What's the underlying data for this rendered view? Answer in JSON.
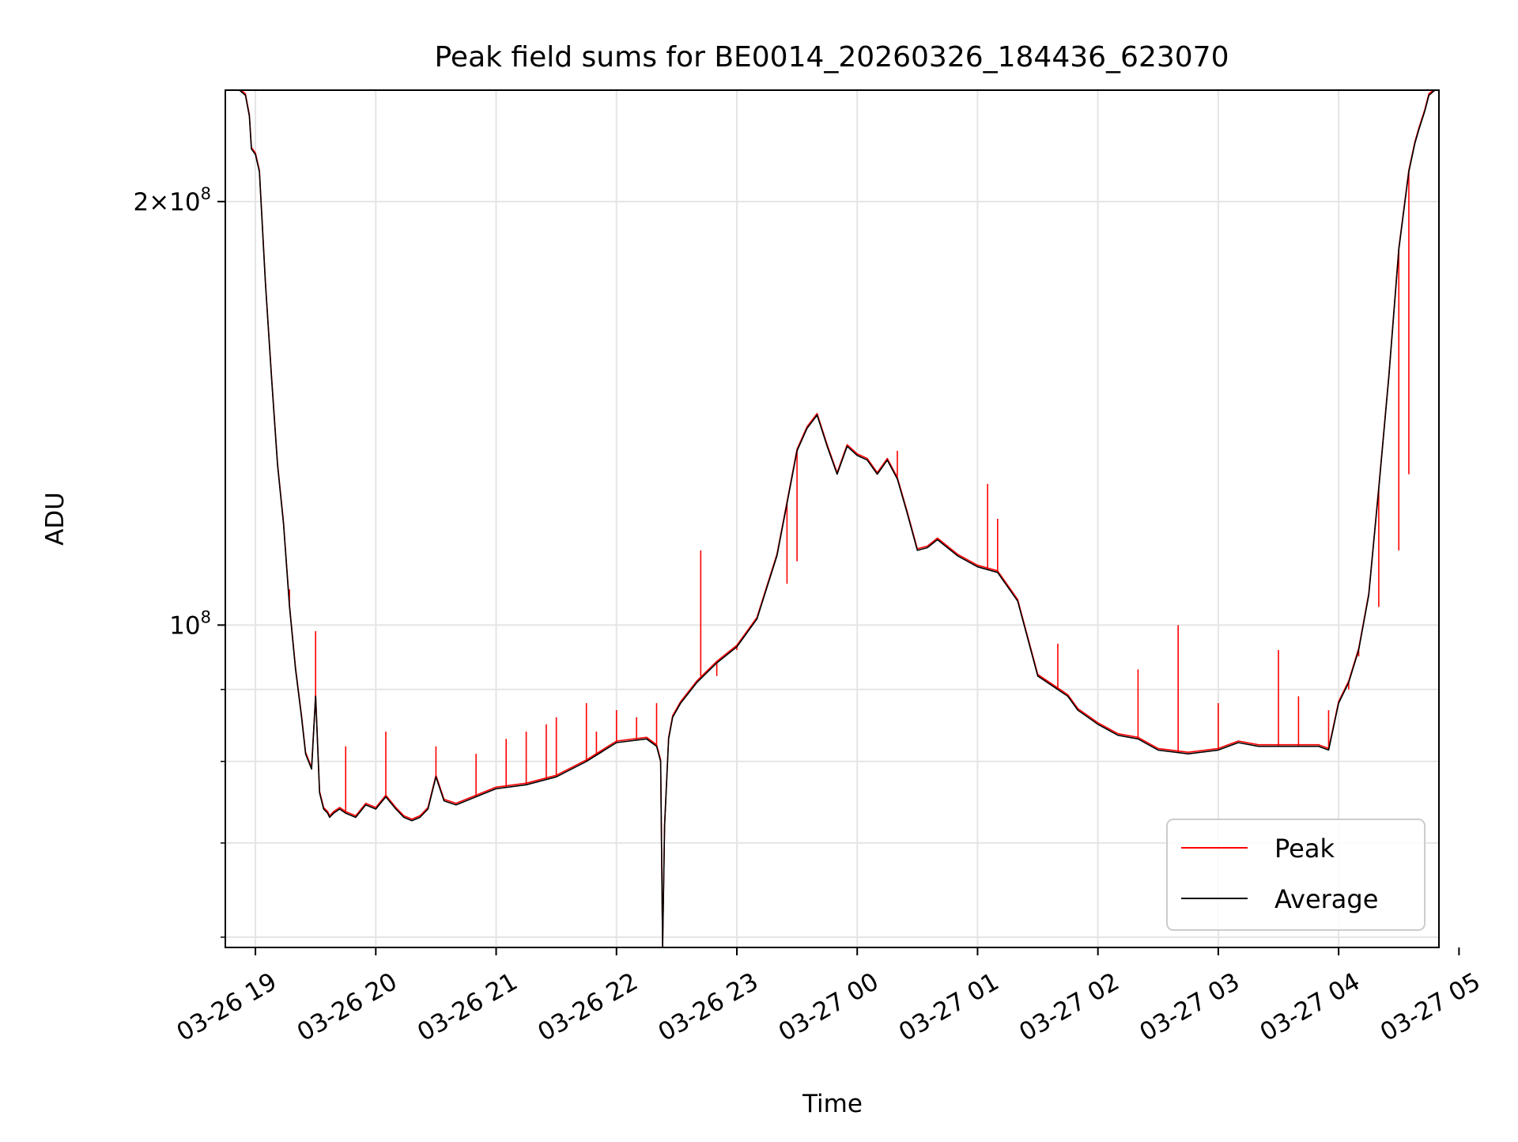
{
  "chart_data": {
    "type": "line",
    "title": "Peak field sums for BE0014_20260326_184436_623070",
    "xlabel": "Time",
    "ylabel": "ADU",
    "xlim": [
      "03-26 18:45",
      "03-27 04:50"
    ],
    "ylim": [
      59000000,
      240000000
    ],
    "yscale": "log",
    "grid": true,
    "legend_position": "lower-right",
    "x_ticks": [
      "03-26 19",
      "03-26 20",
      "03-26 21",
      "03-26 22",
      "03-26 23",
      "03-27 00",
      "03-27 01",
      "03-27 02",
      "03-27 03",
      "03-27 04",
      "03-27 05"
    ],
    "y_ticks": [
      {
        "value": 100000000,
        "mantissa": "",
        "base": "10",
        "exponent": "8"
      },
      {
        "value": 200000000,
        "mantissa": "2×",
        "base": "10",
        "exponent": "8"
      }
    ],
    "y_minor_ticks": [
      60000000,
      70000000,
      80000000,
      90000000
    ],
    "colors": {
      "peak": "#ff0000",
      "average": "#000000"
    },
    "series": [
      {
        "name": "Average",
        "x": [
          "03-26 18:45",
          "03-26 18:48",
          "03-26 18:52",
          "03-26 18:55",
          "03-26 18:57",
          "03-26 18:58",
          "03-26 19:00",
          "03-26 19:02",
          "03-26 19:05",
          "03-26 19:08",
          "03-26 19:11",
          "03-26 19:14",
          "03-26 19:17",
          "03-26 19:20",
          "03-26 19:23",
          "03-26 19:25",
          "03-26 19:28",
          "03-26 19:30",
          "03-26 19:32",
          "03-26 19:34",
          "03-26 19:36",
          "03-26 19:37",
          "03-26 19:39",
          "03-26 19:42",
          "03-26 19:45",
          "03-26 19:50",
          "03-26 19:55",
          "03-26 20:00",
          "03-26 20:05",
          "03-26 20:10",
          "03-26 20:14",
          "03-26 20:18",
          "03-26 20:22",
          "03-26 20:26",
          "03-26 20:30",
          "03-26 20:34",
          "03-26 20:40",
          "03-26 20:50",
          "03-26 21:00",
          "03-26 21:15",
          "03-26 21:30",
          "03-26 21:45",
          "03-26 22:00",
          "03-26 22:15",
          "03-26 22:20",
          "03-26 22:22",
          "03-26 22:23",
          "03-26 22:24",
          "03-26 22:26",
          "03-26 22:28",
          "03-26 22:32",
          "03-26 22:40",
          "03-26 22:50",
          "03-26 23:00",
          "03-26 23:10",
          "03-26 23:20",
          "03-26 23:25",
          "03-26 23:30",
          "03-26 23:35",
          "03-26 23:40",
          "03-26 23:45",
          "03-26 23:50",
          "03-26 23:55",
          "03-27 00:00",
          "03-27 00:05",
          "03-27 00:10",
          "03-27 00:15",
          "03-27 00:20",
          "03-27 00:25",
          "03-27 00:30",
          "03-27 00:35",
          "03-27 00:40",
          "03-27 00:50",
          "03-27 01:00",
          "03-27 01:10",
          "03-27 01:20",
          "03-27 01:30",
          "03-27 01:40",
          "03-27 01:45",
          "03-27 01:50",
          "03-27 01:55",
          "03-27 02:00",
          "03-27 02:10",
          "03-27 02:20",
          "03-27 02:30",
          "03-27 02:45",
          "03-27 03:00",
          "03-27 03:10",
          "03-27 03:20",
          "03-27 03:40",
          "03-27 03:50",
          "03-27 03:55",
          "03-27 04:00",
          "03-27 04:05",
          "03-27 04:10",
          "03-27 04:15",
          "03-27 04:20",
          "03-27 04:25",
          "03-27 04:30",
          "03-27 04:35",
          "03-27 04:38",
          "03-27 04:40",
          "03-27 04:43",
          "03-27 04:45",
          "03-27 04:48",
          "03-27 04:50"
        ],
        "values": [
          240000000,
          240000000,
          240000000,
          238000000,
          230000000,
          218000000,
          216000000,
          210000000,
          175000000,
          150000000,
          130000000,
          118000000,
          103000000,
          93000000,
          86000000,
          81000000,
          79000000,
          89000000,
          76000000,
          74000000,
          73500000,
          73000000,
          73500000,
          74000000,
          73500000,
          73000000,
          74500000,
          74000000,
          75500000,
          74000000,
          73000000,
          72600000,
          73000000,
          74000000,
          78000000,
          75000000,
          74500000,
          75500000,
          76500000,
          77000000,
          78000000,
          80000000,
          82500000,
          83000000,
          82000000,
          80000000,
          59000000,
          72000000,
          83000000,
          86000000,
          88000000,
          91000000,
          94000000,
          96500000,
          101000000,
          112000000,
          122000000,
          133000000,
          138000000,
          141000000,
          134000000,
          128000000,
          134000000,
          132000000,
          131000000,
          128000000,
          131000000,
          127000000,
          120000000,
          113000000,
          113500000,
          115000000,
          112000000,
          110000000,
          109000000,
          104000000,
          92000000,
          90000000,
          89000000,
          87000000,
          86000000,
          85000000,
          83500000,
          83000000,
          81500000,
          81000000,
          81500000,
          82500000,
          82000000,
          82000000,
          82000000,
          81500000,
          88000000,
          91000000,
          96000000,
          105000000,
          125000000,
          150000000,
          185000000,
          210000000,
          220000000,
          225000000,
          232000000,
          238000000,
          240000000,
          240000000
        ]
      },
      {
        "name": "Peak",
        "x": [
          "03-26 19:17",
          "03-26 19:30",
          "03-26 19:45",
          "03-26 20:05",
          "03-26 20:30",
          "03-26 20:50",
          "03-26 21:05",
          "03-26 21:15",
          "03-26 21:25",
          "03-26 21:30",
          "03-26 21:45",
          "03-26 21:50",
          "03-26 22:00",
          "03-26 22:10",
          "03-26 22:20",
          "03-26 22:42",
          "03-26 22:50",
          "03-26 23:00",
          "03-26 23:25",
          "03-26 23:30",
          "03-27 00:20",
          "03-27 01:05",
          "03-27 01:10",
          "03-27 01:40",
          "03-27 02:20",
          "03-27 02:40",
          "03-27 03:00",
          "03-27 03:30",
          "03-27 03:40",
          "03-27 03:55",
          "03-27 04:05",
          "03-27 04:10",
          "03-27 04:20",
          "03-27 04:30",
          "03-27 04:35"
        ],
        "values": [
          106000000,
          99000000,
          82000000,
          84000000,
          82000000,
          81000000,
          83000000,
          84000000,
          85000000,
          86000000,
          88000000,
          84000000,
          87000000,
          86000000,
          88000000,
          113000000,
          92000000,
          96000000,
          107000000,
          111000000,
          133000000,
          126000000,
          119000000,
          97000000,
          93000000,
          100000000,
          88000000,
          96000000,
          89000000,
          87000000,
          90000000,
          95000000,
          103000000,
          113000000,
          128000000
        ]
      }
    ]
  }
}
